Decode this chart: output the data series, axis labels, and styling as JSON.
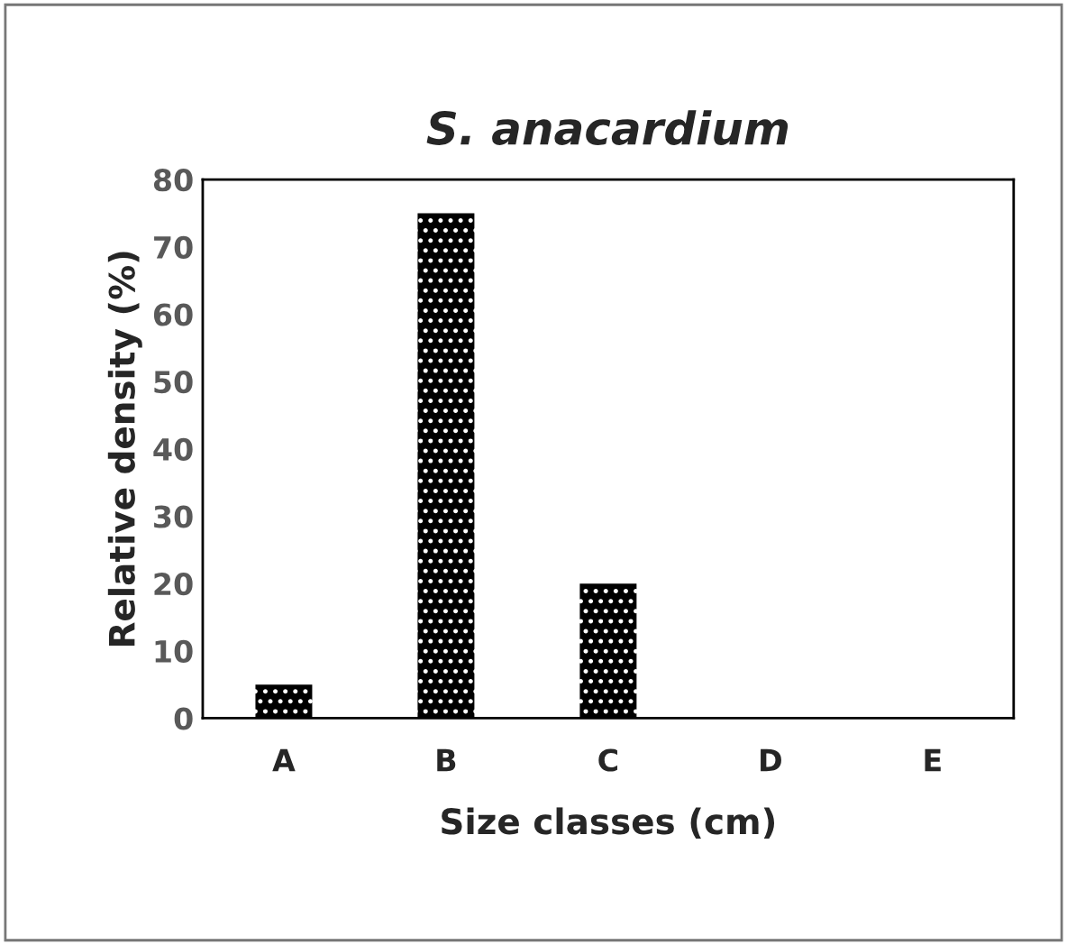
{
  "chart_data": {
    "type": "bar",
    "title": "S. anacardium",
    "xlabel": "Size classes (cm)",
    "ylabel": "Relative density (%)",
    "categories": [
      "A",
      "B",
      "C",
      "D",
      "E"
    ],
    "values": [
      5,
      75,
      20,
      0,
      0
    ],
    "color": "#000000",
    "ylim": [
      0,
      80
    ],
    "yticks": [
      0,
      10,
      20,
      30,
      40,
      50,
      60,
      70,
      80
    ],
    "grid": false
  }
}
